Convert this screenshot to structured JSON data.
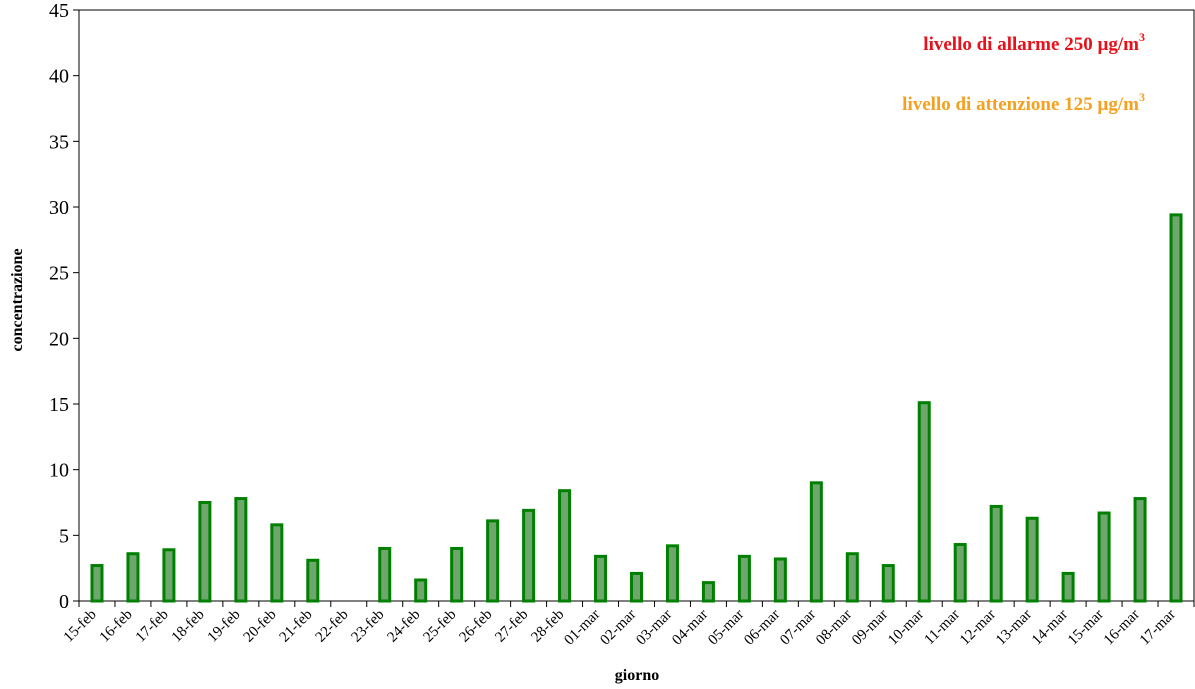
{
  "chart_data": {
    "type": "bar",
    "x_label": "giorno",
    "y_label": "concentrazione",
    "categories": [
      "15-feb",
      "16-feb",
      "17-feb",
      "18-feb",
      "19-feb",
      "20-feb",
      "21-feb",
      "22-feb",
      "23-feb",
      "24-feb",
      "25-feb",
      "26-feb",
      "27-feb",
      "28-feb",
      "01-mar",
      "02-mar",
      "03-mar",
      "04-mar",
      "05-mar",
      "06-mar",
      "07-mar",
      "08-mar",
      "09-mar",
      "10-mar",
      "11-mar",
      "12-mar",
      "13-mar",
      "14-mar",
      "15-mar",
      "16-mar",
      "17-mar"
    ],
    "values": [
      2.7,
      3.6,
      3.9,
      7.5,
      7.8,
      5.8,
      3.1,
      null,
      4.0,
      1.6,
      4.0,
      6.1,
      6.9,
      8.4,
      3.4,
      2.1,
      4.2,
      1.4,
      3.4,
      3.2,
      9.0,
      3.6,
      2.7,
      15.1,
      4.3,
      7.2,
      6.3,
      2.1,
      6.7,
      7.8,
      29.4
    ],
    "color": "#6ea66e",
    "edge_color": "#008000",
    "ylim": [
      0,
      45
    ],
    "yticks": [
      0,
      5,
      10,
      15,
      20,
      25,
      30,
      35,
      40,
      45
    ],
    "annotations": [
      {
        "text": "livello di allarme 250 µg/m",
        "sup": "3",
        "color": "#e8101a"
      },
      {
        "text": "livello di attenzione 125 µg/m",
        "sup": "3",
        "color": "#f5a01e"
      }
    ]
  }
}
